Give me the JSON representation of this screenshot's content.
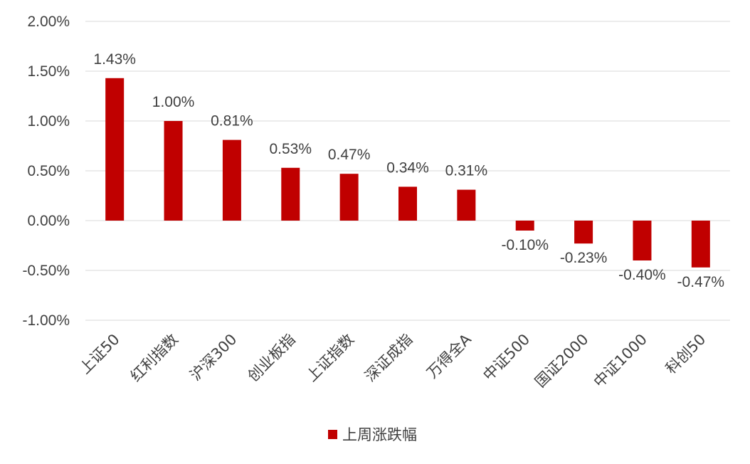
{
  "chart_data": {
    "type": "bar",
    "categories": [
      "上证50",
      "红利指数",
      "沪深300",
      "创业板指",
      "上证指数",
      "深证成指",
      "万得全A",
      "中证500",
      "国证2000",
      "中证1000",
      "科创50"
    ],
    "series": [
      {
        "name": "上周涨跌幅",
        "values": [
          1.43,
          1.0,
          0.81,
          0.53,
          0.47,
          0.34,
          0.31,
          -0.1,
          -0.23,
          -0.4,
          -0.47
        ],
        "labels": [
          "1.43%",
          "1.00%",
          "0.81%",
          "0.53%",
          "0.47%",
          "0.34%",
          "0.31%",
          "-0.10%",
          "-0.23%",
          "-0.40%",
          "-0.47%"
        ],
        "color": "#C00000"
      }
    ],
    "ylim": [
      -1.0,
      2.0
    ],
    "yticks": [
      2.0,
      1.5,
      1.0,
      0.5,
      0.0,
      -0.5,
      -1.0
    ],
    "ytick_labels": [
      "2.00%",
      "1.50%",
      "1.00%",
      "0.50%",
      "0.00%",
      "-0.50%",
      "-1.00%"
    ],
    "grid": true,
    "gridColor": "#D9D9D9",
    "legend_position": "bottom-center",
    "x_tick_rotation": -45
  }
}
